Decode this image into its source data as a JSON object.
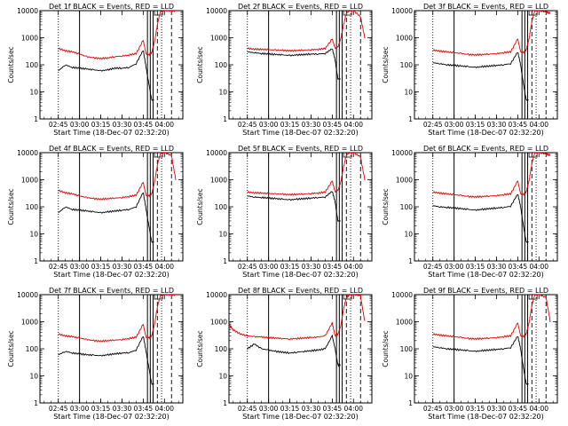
{
  "figure": {
    "x_title": "Start Time (18-Dec-07 02:32:20)",
    "y_title": "Counts/sec",
    "chart_data": [
      {
        "type": "line",
        "title": "Det 1f BLACK = Events, RED = LLD",
        "xlabel": "Start Time (18-Dec-07 02:32:20)",
        "ylabel": "Counts/sec",
        "log_y": true,
        "ylim": [
          1,
          10000
        ],
        "x_ticks": [
          "02:45",
          "03:00",
          "03:15",
          "03:30",
          "03:45",
          "04:00"
        ],
        "y_ticks": [
          "1",
          "10",
          "100",
          "1000",
          "10000"
        ],
        "x": [
          "02:45",
          "02:50",
          "02:55",
          "03:00",
          "03:05",
          "03:10",
          "03:15",
          "03:20",
          "03:25",
          "03:30",
          "03:35",
          "03:40",
          "03:45",
          "03:47",
          "03:49",
          "03:51",
          "03:53",
          "03:55",
          "03:57",
          "04:00",
          "04:05",
          "04:08"
        ],
        "series": [
          {
            "name": "Events",
            "color": "#000000",
            "values": [
              60,
              100,
              80,
              75,
              70,
              65,
              60,
              65,
              75,
              75,
              80,
              110,
              350,
              80,
              20,
              5,
              null,
              null,
              null,
              null,
              null,
              null
            ]
          },
          {
            "name": "LLD",
            "color": "#dd0000",
            "values": [
              400,
              330,
              300,
              250,
              200,
              180,
              170,
              180,
              200,
              210,
              230,
              260,
              800,
              250,
              230,
              280,
              700,
              3000,
              9000,
              10000,
              10000,
              10000
            ]
          }
        ]
      },
      {
        "type": "line",
        "title": "Det 2f BLACK = Events, RED = LLD",
        "xlabel": "Start Time (18-Dec-07 02:32:20)",
        "ylabel": "Counts/sec",
        "log_y": true,
        "ylim": [
          1,
          10000
        ],
        "x_ticks": [
          "02:45",
          "03:00",
          "03:15",
          "03:30",
          "03:45",
          "04:00"
        ],
        "y_ticks": [
          "1",
          "10",
          "100",
          "1000",
          "10000"
        ],
        "x": [
          "02:45",
          "02:50",
          "02:55",
          "03:00",
          "03:05",
          "03:10",
          "03:15",
          "03:20",
          "03:25",
          "03:30",
          "03:35",
          "03:40",
          "03:45",
          "03:47",
          "03:49",
          "03:51",
          "03:53",
          "03:55",
          "03:57",
          "04:00",
          "04:05",
          "04:08"
        ],
        "series": [
          {
            "name": "Events",
            "color": "#000000",
            "values": [
              300,
              280,
              260,
              250,
              240,
              230,
              220,
              230,
              240,
              250,
              250,
              260,
              400,
              150,
              30,
              null,
              null,
              null,
              null,
              null,
              null,
              null
            ]
          },
          {
            "name": "LLD",
            "color": "#dd0000",
            "values": [
              400,
              380,
              370,
              360,
              350,
              340,
              330,
              340,
              350,
              360,
              370,
              400,
              900,
              400,
              450,
              900,
              3000,
              8000,
              10000,
              10000,
              6000,
              1000
            ]
          }
        ]
      },
      {
        "type": "line",
        "title": "Det 3f BLACK = Events, RED = LLD",
        "xlabel": "Start Time (18-Dec-07 02:32:20)",
        "ylabel": "Counts/sec",
        "log_y": true,
        "ylim": [
          1,
          10000
        ],
        "x_ticks": [
          "02:45",
          "03:00",
          "03:15",
          "03:30",
          "03:45",
          "04:00"
        ],
        "y_ticks": [
          "1",
          "10",
          "100",
          "1000",
          "10000"
        ],
        "x": [
          "02:45",
          "02:50",
          "02:55",
          "03:00",
          "03:05",
          "03:10",
          "03:15",
          "03:20",
          "03:25",
          "03:30",
          "03:35",
          "03:40",
          "03:45",
          "03:47",
          "03:49",
          "03:51",
          "03:53",
          "03:55",
          "03:57",
          "04:00",
          "04:05",
          "04:08"
        ],
        "series": [
          {
            "name": "Events",
            "color": "#000000",
            "values": [
              120,
              110,
              100,
              95,
              90,
              85,
              80,
              85,
              90,
              95,
              100,
              110,
              300,
              100,
              20,
              5,
              null,
              null,
              null,
              null,
              null,
              null
            ]
          },
          {
            "name": "LLD",
            "color": "#dd0000",
            "values": [
              350,
              320,
              300,
              280,
              260,
              240,
              230,
              240,
              250,
              260,
              280,
              300,
              900,
              300,
              280,
              350,
              900,
              4000,
              10000,
              10000,
              9000,
              8000
            ]
          }
        ]
      },
      {
        "type": "line",
        "title": "Det 4f BLACK = Events, RED = LLD",
        "xlabel": "Start Time (18-Dec-07 02:32:20)",
        "ylabel": "Counts/sec",
        "log_y": true,
        "ylim": [
          1,
          10000
        ],
        "x_ticks": [
          "02:45",
          "03:00",
          "03:15",
          "03:30",
          "03:45",
          "04:00"
        ],
        "y_ticks": [
          "1",
          "10",
          "100",
          "1000",
          "10000"
        ],
        "x": [
          "02:45",
          "02:50",
          "02:55",
          "03:00",
          "03:05",
          "03:10",
          "03:15",
          "03:20",
          "03:25",
          "03:30",
          "03:35",
          "03:40",
          "03:45",
          "03:47",
          "03:49",
          "03:51",
          "03:53",
          "03:55",
          "03:57",
          "04:00",
          "04:05",
          "04:08"
        ],
        "series": [
          {
            "name": "Events",
            "color": "#000000",
            "values": [
              60,
              100,
              80,
              75,
              70,
              65,
              60,
              65,
              70,
              75,
              80,
              100,
              350,
              80,
              20,
              5,
              null,
              null,
              null,
              null,
              null,
              null
            ]
          },
          {
            "name": "LLD",
            "color": "#dd0000",
            "values": [
              400,
              330,
              300,
              250,
              220,
              200,
              190,
              200,
              210,
              220,
              240,
              270,
              800,
              260,
              250,
              300,
              800,
              3500,
              9000,
              10000,
              8000,
              1000
            ]
          }
        ]
      },
      {
        "type": "line",
        "title": "Det 5f BLACK = Events, RED = LLD",
        "xlabel": "Start Time (18-Dec-07 02:32:20)",
        "ylabel": "Counts/sec",
        "log_y": true,
        "ylim": [
          1,
          10000
        ],
        "x_ticks": [
          "02:45",
          "03:00",
          "03:15",
          "03:30",
          "03:45",
          "04:00"
        ],
        "y_ticks": [
          "1",
          "10",
          "100",
          "1000",
          "10000"
        ],
        "x": [
          "02:45",
          "02:50",
          "02:55",
          "03:00",
          "03:05",
          "03:10",
          "03:15",
          "03:20",
          "03:25",
          "03:30",
          "03:35",
          "03:40",
          "03:45",
          "03:47",
          "03:49",
          "03:51",
          "03:53",
          "03:55",
          "03:57",
          "04:00",
          "04:05",
          "04:08"
        ],
        "series": [
          {
            "name": "Events",
            "color": "#000000",
            "values": [
              250,
              230,
              220,
              210,
              200,
              190,
              180,
              190,
              200,
              210,
              220,
              230,
              380,
              150,
              30,
              null,
              null,
              null,
              null,
              null,
              null,
              null
            ]
          },
          {
            "name": "LLD",
            "color": "#dd0000",
            "values": [
              350,
              330,
              320,
              310,
              300,
              290,
              280,
              290,
              300,
              310,
              320,
              350,
              900,
              350,
              400,
              800,
              3000,
              8000,
              10000,
              10000,
              7000,
              1000
            ]
          }
        ]
      },
      {
        "type": "line",
        "title": "Det 6f BLACK = Events, RED = LLD",
        "xlabel": "Start Time (18-Dec-07 02:32:20)",
        "ylabel": "Counts/sec",
        "log_y": true,
        "ylim": [
          1,
          10000
        ],
        "x_ticks": [
          "02:45",
          "03:00",
          "03:15",
          "03:30",
          "03:45",
          "04:00"
        ],
        "y_ticks": [
          "1",
          "10",
          "100",
          "1000",
          "10000"
        ],
        "x": [
          "02:45",
          "02:50",
          "02:55",
          "03:00",
          "03:05",
          "03:10",
          "03:15",
          "03:20",
          "03:25",
          "03:30",
          "03:35",
          "03:40",
          "03:45",
          "03:47",
          "03:49",
          "03:51",
          "03:53",
          "03:55",
          "03:57",
          "04:00",
          "04:05",
          "04:08"
        ],
        "series": [
          {
            "name": "Events",
            "color": "#000000",
            "values": [
              110,
              100,
              95,
              90,
              85,
              80,
              75,
              80,
              85,
              90,
              95,
              105,
              300,
              100,
              20,
              5,
              null,
              null,
              null,
              null,
              null,
              null
            ]
          },
          {
            "name": "LLD",
            "color": "#dd0000",
            "values": [
              350,
              320,
              300,
              280,
              260,
              240,
              230,
              240,
              250,
              260,
              280,
              300,
              900,
              300,
              280,
              350,
              900,
              4000,
              10000,
              10000,
              9000,
              8000
            ]
          }
        ]
      },
      {
        "type": "line",
        "title": "Det 7f BLACK = Events, RED = LLD",
        "xlabel": "Start Time (18-Dec-07 02:32:20)",
        "ylabel": "Counts/sec",
        "log_y": true,
        "ylim": [
          1,
          10000
        ],
        "x_ticks": [
          "02:45",
          "03:00",
          "03:15",
          "03:30",
          "03:45",
          "04:00"
        ],
        "y_ticks": [
          "1",
          "10",
          "100",
          "1000",
          "10000"
        ],
        "x": [
          "02:45",
          "02:50",
          "02:55",
          "03:00",
          "03:05",
          "03:10",
          "03:15",
          "03:20",
          "03:25",
          "03:30",
          "03:35",
          "03:40",
          "03:45",
          "03:47",
          "03:49",
          "03:51",
          "03:53",
          "03:55",
          "03:57",
          "04:00",
          "04:05",
          "04:08"
        ],
        "series": [
          {
            "name": "Events",
            "color": "#000000",
            "values": [
              60,
              80,
              70,
              65,
              60,
              58,
              55,
              60,
              65,
              70,
              72,
              90,
              300,
              80,
              20,
              5,
              null,
              null,
              null,
              null,
              null,
              null
            ]
          },
          {
            "name": "LLD",
            "color": "#dd0000",
            "values": [
              350,
              300,
              280,
              250,
              220,
              200,
              190,
              200,
              210,
              220,
              240,
              270,
              800,
              260,
              250,
              300,
              800,
              3500,
              9000,
              10000,
              10000,
              10000
            ]
          }
        ]
      },
      {
        "type": "line",
        "title": "Det 8f BLACK = Events, RED = LLD",
        "xlabel": "Start Time (18-Dec-07 02:32:20)",
        "ylabel": "Counts/sec",
        "log_y": true,
        "ylim": [
          1,
          10000
        ],
        "x_ticks": [
          "02:45",
          "03:00",
          "03:15",
          "03:30",
          "03:45",
          "04:00"
        ],
        "y_ticks": [
          "1",
          "10",
          "100",
          "1000",
          "10000"
        ],
        "x": [
          "02:32",
          "02:35",
          "02:40",
          "02:45",
          "02:50",
          "02:55",
          "03:00",
          "03:05",
          "03:10",
          "03:15",
          "03:20",
          "03:25",
          "03:30",
          "03:35",
          "03:40",
          "03:45",
          "03:47",
          "03:49",
          "03:51",
          "03:53",
          "03:55",
          "03:57",
          "04:00",
          "04:05",
          "04:08"
        ],
        "series": [
          {
            "name": "Events",
            "color": "#000000",
            "values": [
              null,
              null,
              null,
              100,
              150,
              100,
              90,
              80,
              75,
              70,
              75,
              80,
              85,
              90,
              100,
              300,
              100,
              25,
              null,
              null,
              null,
              null,
              null,
              null,
              null
            ]
          },
          {
            "name": "LLD",
            "color": "#dd0000",
            "values": [
              800,
              500,
              350,
              300,
              280,
              270,
              260,
              250,
              240,
              230,
              240,
              250,
              260,
              270,
              300,
              900,
              300,
              350,
              700,
              3000,
              8000,
              10000,
              10000,
              9000,
              1000
            ]
          }
        ]
      },
      {
        "type": "line",
        "title": "Det 9f BLACK = Events, RED = LLD",
        "xlabel": "Start Time (18-Dec-07 02:32:20)",
        "ylabel": "Counts/sec",
        "log_y": true,
        "ylim": [
          1,
          10000
        ],
        "x_ticks": [
          "02:45",
          "03:00",
          "03:15",
          "03:30",
          "03:45",
          "04:00"
        ],
        "y_ticks": [
          "1",
          "10",
          "100",
          "1000",
          "10000"
        ],
        "x": [
          "02:45",
          "02:50",
          "02:55",
          "03:00",
          "03:05",
          "03:10",
          "03:15",
          "03:20",
          "03:25",
          "03:30",
          "03:35",
          "03:40",
          "03:45",
          "03:47",
          "03:49",
          "03:51",
          "03:53",
          "03:55",
          "03:57",
          "04:00",
          "04:05",
          "04:08"
        ],
        "series": [
          {
            "name": "Events",
            "color": "#000000",
            "values": [
              120,
              110,
              100,
              95,
              90,
              85,
              80,
              85,
              90,
              95,
              100,
              110,
              300,
              100,
              20,
              5,
              null,
              null,
              null,
              null,
              null,
              null
            ]
          },
          {
            "name": "LLD",
            "color": "#dd0000",
            "values": [
              350,
              320,
              300,
              280,
              260,
              240,
              230,
              240,
              250,
              260,
              280,
              300,
              900,
              300,
              280,
              350,
              900,
              4000,
              10000,
              10000,
              8000,
              1000
            ]
          }
        ]
      }
    ],
    "markers": {
      "dotted": [
        "02:45",
        "03:58"
      ],
      "solid": [
        "03:00",
        "03:48",
        "03:50",
        "03:52"
      ],
      "dashed": [
        "03:55",
        "04:05"
      ]
    }
  }
}
